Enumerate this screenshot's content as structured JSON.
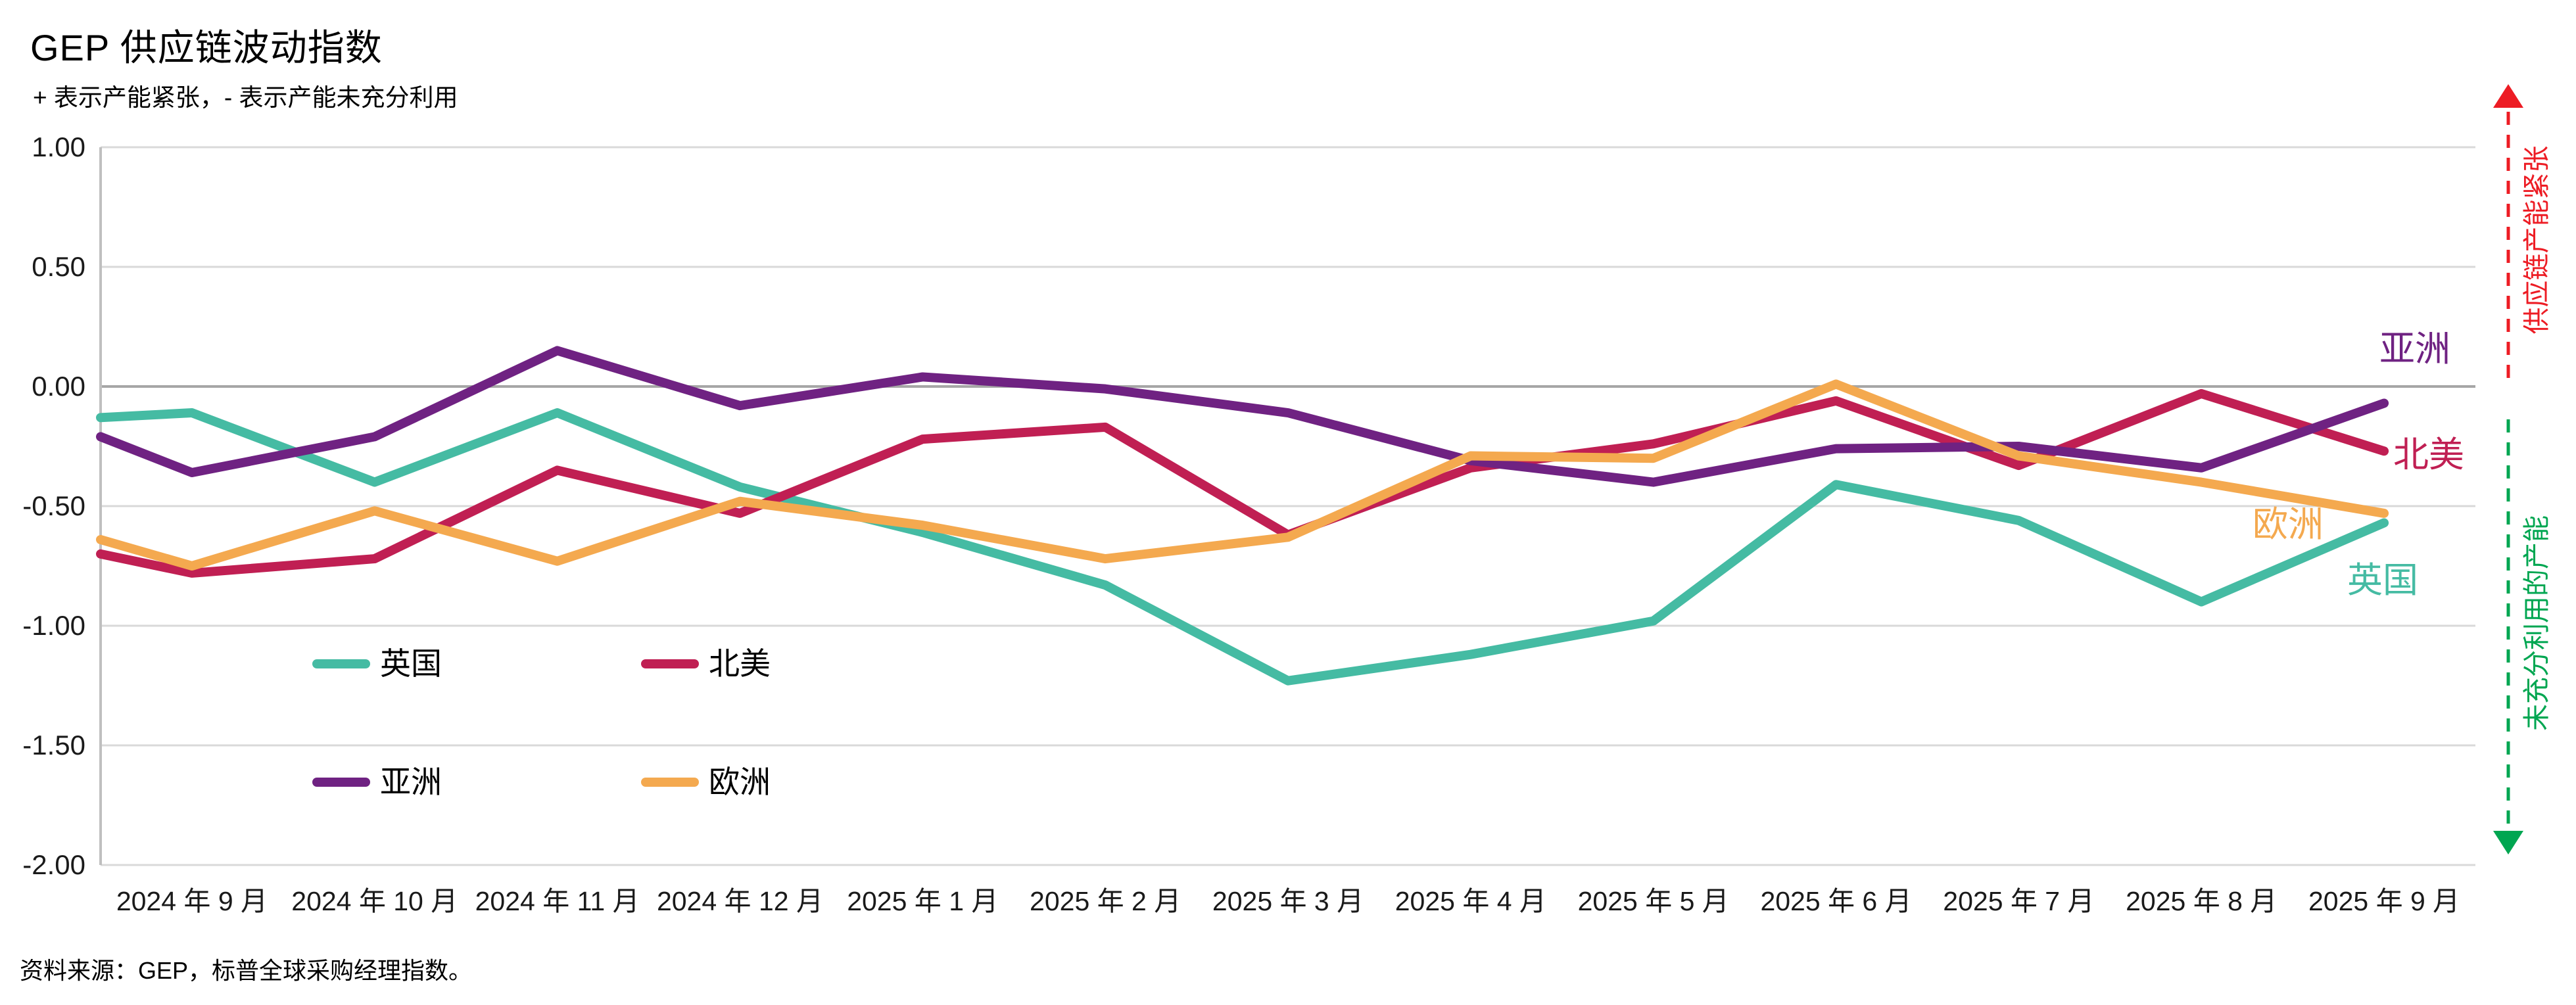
{
  "header": {
    "title": "GEP 供应链波动指数",
    "subtitle": "+ 表示产能紧张，- 表示产能未充分利用"
  },
  "footer": {
    "source": "资料来源：GEP，标普全球采购经理指数。"
  },
  "colors": {
    "grid_light": "#D9D9D9",
    "zero_line": "#A6A6A6",
    "axis_line": "#BFBFBF",
    "tick_text": "#1a1a1a",
    "uk_teal": "#45BBA3",
    "north_america_crimson": "#C01F53",
    "asia_purple": "#6F2282",
    "europe_orange": "#F4A94F",
    "annotation_red": "#ED1C24",
    "annotation_green": "#00A651"
  },
  "chart_data": {
    "type": "line",
    "title": "GEP 供应链波动指数",
    "xlabel": "",
    "ylabel": "",
    "ylim": [
      -2.0,
      1.0
    ],
    "y_tick_labels": [
      "1.00",
      "0.50",
      "0.00",
      "-0.50",
      "-1.00",
      "-1.50",
      "-2.00"
    ],
    "y_tick_values": [
      1.0,
      0.5,
      0.0,
      -0.5,
      -1.0,
      -1.5,
      -2.0
    ],
    "grid": true,
    "legend_position": "inside-lower-left",
    "categories": [
      "2024 年 9 月",
      "2024 年 10 月",
      "2024 年 11 月",
      "2024 年 12 月",
      "2025 年 1 月",
      "2025 年 2 月",
      "2025 年 3 月",
      "2025 年 4 月",
      "2025 年 5 月",
      "2025 年 6 月",
      "2025 年 7 月",
      "2025 年 8 月",
      "2025 年 9 月"
    ],
    "series": [
      {
        "id": "uk",
        "name": "英国",
        "color": "#45BBA3",
        "left_edge_value": -0.13,
        "values": [
          -0.11,
          -0.4,
          -0.11,
          -0.42,
          -0.61,
          -0.83,
          -1.23,
          -1.12,
          -0.98,
          -0.41,
          -0.56,
          -0.9,
          -0.57
        ]
      },
      {
        "id": "north_america",
        "name": "北美",
        "color": "#C01F53",
        "left_edge_value": -0.7,
        "values": [
          -0.78,
          -0.72,
          -0.35,
          -0.53,
          -0.22,
          -0.17,
          -0.62,
          -0.34,
          -0.24,
          -0.06,
          -0.33,
          -0.03,
          -0.27
        ]
      },
      {
        "id": "asia",
        "name": "亚洲",
        "color": "#6F2282",
        "left_edge_value": -0.21,
        "values": [
          -0.36,
          -0.21,
          0.15,
          -0.08,
          0.04,
          -0.01,
          -0.11,
          -0.31,
          -0.4,
          -0.26,
          -0.25,
          -0.34,
          -0.07
        ]
      },
      {
        "id": "europe",
        "name": "欧洲",
        "color": "#F4A94F",
        "left_edge_value": -0.64,
        "values": [
          -0.75,
          -0.52,
          -0.73,
          -0.48,
          -0.58,
          -0.72,
          -0.63,
          -0.29,
          -0.3,
          0.01,
          -0.29,
          -0.4,
          -0.53
        ]
      }
    ],
    "legend_rows": [
      [
        {
          "label": "英国",
          "series": "uk"
        },
        {
          "label": "北美",
          "series": "north_america"
        }
      ],
      [
        {
          "label": "亚洲",
          "series": "asia"
        },
        {
          "label": "欧洲",
          "series": "europe"
        }
      ]
    ],
    "end_labels": [
      {
        "text": "亚洲",
        "series": "asia"
      },
      {
        "text": "北美",
        "series": "north_america"
      },
      {
        "text": "欧洲",
        "series": "europe"
      },
      {
        "text": "英国",
        "series": "uk"
      }
    ]
  },
  "annotations": {
    "up_arrow": {
      "label": "供应链产能紧张",
      "color": "#ED1C24",
      "direction": "up"
    },
    "down_arrow": {
      "label": "未充分利用的产能",
      "color": "#00A651",
      "direction": "down"
    }
  }
}
